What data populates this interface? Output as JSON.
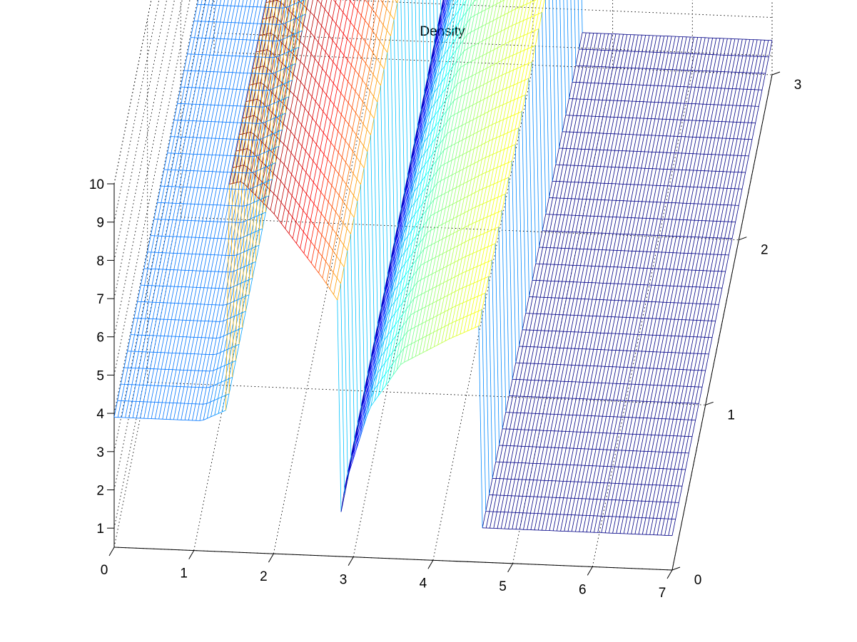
{
  "chart_data": {
    "type": "surface",
    "title": "Density",
    "xlabel": "",
    "ylabel": "",
    "zlabel": "",
    "xlim": [
      0,
      7
    ],
    "ylim": [
      0,
      3
    ],
    "zlim": [
      0.5,
      10
    ],
    "x_ticks": [
      "0",
      "1",
      "2",
      "3",
      "4",
      "5",
      "6",
      "7"
    ],
    "y_ticks": [
      "0",
      "1",
      "2",
      "3"
    ],
    "z_ticks": [
      "1",
      "2",
      "3",
      "4",
      "5",
      "6",
      "7",
      "8",
      "9",
      "10"
    ],
    "grid": true,
    "colormap": "jet",
    "colors": [
      "#00007f",
      "#0000ff",
      "#00ffff",
      "#ffff00",
      "#ff0000",
      "#7f0000"
    ],
    "profile": {
      "x": [
        0.0,
        1.1,
        1.4,
        1.42,
        1.6,
        2.0,
        2.6,
        2.8,
        2.82,
        2.9,
        3.2,
        3.6,
        4.2,
        4.5,
        4.6,
        4.62,
        7.0
      ],
      "density": [
        3.9,
        3.9,
        4.2,
        10.1,
        10.2,
        9.4,
        7.8,
        7.2,
        1.3,
        2.4,
        4.4,
        5.6,
        6.3,
        6.6,
        6.7,
        1.4,
        1.4
      ]
    }
  }
}
